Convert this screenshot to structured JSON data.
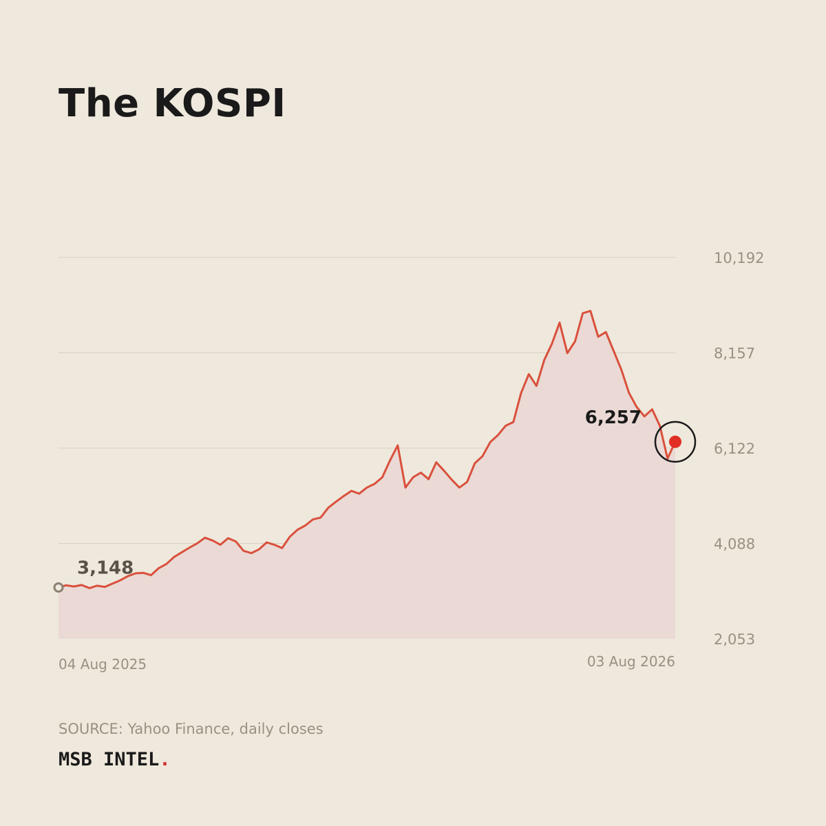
{
  "title": "The KOSPI",
  "source": "SOURCE: Yahoo Finance, daily closes",
  "brand": {
    "name": "MSB INTEL",
    "dot": "."
  },
  "colors": {
    "background": "#efe8dc",
    "line": "#d9503c",
    "area": "#ead9d5",
    "marker": "#e02e24",
    "grid": "#d8d0c3",
    "axis_text": "#9a9082"
  },
  "chart_data": {
    "type": "area",
    "title": "The KOSPI",
    "xlabel": "",
    "ylabel": "",
    "ylim": [
      2053,
      10192
    ],
    "y_ticks": [
      "10,192",
      "8,157",
      "6,122",
      "4,088",
      "2,053"
    ],
    "y_tick_values": [
      10192,
      8157,
      6122,
      4088,
      2053
    ],
    "x_tick_labels": [
      "04 Aug 2025",
      "03 Aug 2026"
    ],
    "x_range": [
      "2025-08-04",
      "2026-08-03"
    ],
    "grid": true,
    "start_label": "3,148",
    "end_label": "6,257",
    "series": [
      {
        "values": [
          3148,
          3195,
          3170,
          3200,
          3135,
          3185,
          3160,
          3230,
          3300,
          3390,
          3450,
          3460,
          3410,
          3560,
          3650,
          3800,
          3900,
          4000,
          4090,
          4210,
          4150,
          4060,
          4200,
          4130,
          3930,
          3880,
          3960,
          4110,
          4060,
          3990,
          4230,
          4380,
          4470,
          4600,
          4640,
          4850,
          4980,
          5100,
          5210,
          5150,
          5280,
          5360,
          5500,
          5860,
          6180,
          5280,
          5500,
          5600,
          5460,
          5820,
          5640,
          5450,
          5280,
          5400,
          5800,
          5950,
          6250,
          6400,
          6600,
          6680,
          7300,
          7700,
          7450,
          8000,
          8350,
          8800,
          8150,
          8400,
          9000,
          9050,
          8500,
          8600,
          8200,
          7800,
          7300,
          7000,
          6800,
          6950,
          6600,
          5900,
          6257
        ]
      }
    ]
  }
}
